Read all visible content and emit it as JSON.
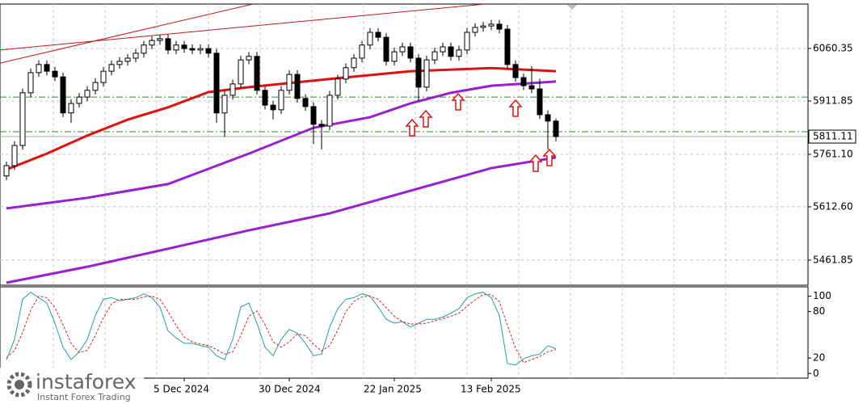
{
  "chart_data": [
    {
      "type": "candlestick",
      "categories": [
        null,
        null,
        null,
        null,
        null,
        null,
        null,
        null,
        null,
        null,
        null,
        null,
        null,
        null,
        null,
        null,
        null,
        null,
        null,
        null,
        null,
        null,
        "5 Dec 2024",
        null,
        null,
        null,
        null,
        null,
        null,
        null,
        null,
        null,
        null,
        null,
        null,
        "30 Dec 2024",
        null,
        null,
        null,
        null,
        null,
        null,
        null,
        null,
        null,
        null,
        null,
        null,
        "22 Jan 2025",
        null,
        null,
        null,
        null,
        null,
        null,
        null,
        null,
        null,
        null,
        null,
        "13 Feb 2025",
        null,
        null,
        null,
        null,
        null,
        null,
        null,
        null
      ],
      "open": [
        5700,
        5729,
        5786,
        5935,
        5992,
        6015,
        5996,
        5980,
        5878,
        5905,
        5923,
        5942,
        5964,
        5996,
        6015,
        6024,
        6033,
        6047,
        6070,
        6083,
        6088,
        6056,
        6070,
        6060,
        6056,
        6060,
        6047,
        5878,
        5928,
        5960,
        6028,
        6038,
        5942,
        5900,
        5887,
        5942,
        5987,
        5919,
        5896,
        5846,
        5841,
        5928,
        5974,
        6006,
        6033,
        6070,
        6106,
        6092,
        6024,
        6051,
        6065,
        6033,
        5951,
        6028,
        6051,
        6065,
        6038,
        6056,
        6106,
        6120,
        6124,
        6129,
        6115,
        6015,
        5978,
        5955,
        5946,
        5873,
        5855
      ],
      "high": [
        5741,
        5798,
        5947,
        6004,
        6027,
        6027,
        6008,
        5992,
        5917,
        5935,
        5954,
        5976,
        6008,
        6027,
        6036,
        6045,
        6059,
        6082,
        6095,
        6100,
        6100,
        6082,
        6082,
        6072,
        6072,
        6072,
        6059,
        5940,
        5972,
        6040,
        6050,
        6050,
        5954,
        5912,
        5954,
        5999,
        5999,
        5931,
        5908,
        5858,
        5940,
        5986,
        6018,
        6045,
        6082,
        6118,
        6118,
        6104,
        6063,
        6077,
        6077,
        6045,
        6040,
        6063,
        6077,
        6077,
        6068,
        6118,
        6132,
        6136,
        6141,
        6141,
        6127,
        6027,
        5990,
        6010,
        5975,
        5885,
        5862
      ],
      "low": [
        5688,
        5717,
        5774,
        5923,
        5980,
        5984,
        5968,
        5866,
        5850,
        5893,
        5911,
        5930,
        5952,
        5984,
        6003,
        6012,
        6021,
        6035,
        6058,
        6071,
        6044,
        6044,
        6048,
        6044,
        6044,
        6035,
        5850,
        5810,
        5916,
        5948,
        6016,
        5930,
        5888,
        5860,
        5875,
        5930,
        5907,
        5884,
        5790,
        5775,
        5829,
        5916,
        5962,
        5994,
        6021,
        6058,
        6080,
        6012,
        6012,
        6039,
        6021,
        5912,
        5939,
        6016,
        6039,
        6026,
        6026,
        6044,
        6094,
        6108,
        6112,
        6103,
        6003,
        5966,
        5943,
        5934,
        5861,
        5775,
        5798
      ],
      "close": [
        5729,
        5786,
        5935,
        5992,
        6015,
        5996,
        5980,
        5878,
        5905,
        5923,
        5942,
        5964,
        5996,
        6015,
        6024,
        6033,
        6047,
        6070,
        6083,
        6088,
        6056,
        6070,
        6060,
        6056,
        6060,
        6047,
        5878,
        5928,
        5960,
        6028,
        6038,
        5942,
        5900,
        5887,
        5942,
        5987,
        5919,
        5896,
        5846,
        5841,
        5928,
        5974,
        6006,
        6033,
        6070,
        6106,
        6092,
        6024,
        6051,
        6065,
        6033,
        5951,
        6028,
        6051,
        6065,
        6038,
        6056,
        6106,
        6120,
        6124,
        6129,
        6115,
        6015,
        5978,
        5955,
        5946,
        5873,
        5855,
        5811.11
      ],
      "up_color": "#ffffff",
      "down_color": "#000000",
      "ylim": [
        5390.8,
        6186
      ],
      "yticks": [
        5461.85,
        {
          "value": 5612.6,
          "label": "5612.60"
        },
        {
          "value": 5761.1,
          "label": "5761.10"
        },
        5911.85,
        6060.35
      ],
      "grid": true,
      "last_price": 5811.11,
      "hlines": [
        5923,
        5825
      ],
      "hline_color": "#2e8b2e",
      "moving_averages": [
        {
          "color": "#e01010",
          "x": [
            0,
            5,
            10,
            15,
            20,
            25,
            30,
            40,
            50,
            60,
            68
          ],
          "values": [
            5718,
            5763,
            5814,
            5859,
            5894,
            5937,
            5951,
            5974,
            5996,
            6005,
            5996
          ]
        },
        {
          "color": "#9a1fd0",
          "x": [
            0,
            10,
            20,
            30,
            38,
            45,
            50,
            55,
            60,
            68
          ],
          "values": [
            5608,
            5638,
            5677,
            5763,
            5836,
            5866,
            5905,
            5935,
            5955,
            5967
          ]
        },
        {
          "color": "#9a1fd0",
          "x": [
            0,
            10,
            20,
            30,
            40,
            50,
            60,
            68
          ],
          "values": [
            5398,
            5443,
            5494,
            5546,
            5594,
            5658,
            5722,
            5752
          ]
        }
      ],
      "trendlines": [
        {
          "color": "#c01818",
          "x": [
            -0.8,
            30.5
          ],
          "values": [
            6019,
            6186
          ]
        },
        {
          "color": "#c01818",
          "x": [
            -0.8,
            59.2
          ],
          "values": [
            6056,
            6186
          ]
        }
      ]
    },
    {
      "type": "line",
      "ylim": [
        -6,
        112
      ],
      "yticks": [
        0,
        20,
        80,
        100
      ],
      "series": [
        {
          "color": "#20a0a8",
          "dash": false,
          "values": [
            18,
            44,
            96,
            105,
            98,
            91,
            65,
            34,
            18,
            28,
            44,
            75,
            96,
            98,
            94,
            96,
            98,
            103,
            98,
            86,
            55,
            46,
            39,
            39,
            36,
            34,
            23,
            18,
            44,
            86,
            91,
            65,
            34,
            23,
            44,
            57,
            52,
            39,
            23,
            25,
            60,
            84,
            96,
            98,
            103,
            100,
            86,
            70,
            65,
            67,
            60,
            65,
            70,
            70,
            73,
            78,
            84,
            98,
            103,
            105,
            98,
            75,
            13,
            11,
            19,
            23,
            25,
            36,
            32
          ]
        },
        {
          "color": "#e02020",
          "dash": true,
          "values": [
            20,
            30,
            53,
            82,
            100,
            98,
            85,
            63,
            39,
            27,
            30,
            49,
            72,
            90,
            96,
            96,
            96,
            99,
            100,
            96,
            80,
            62,
            47,
            41,
            38,
            36,
            31,
            25,
            28,
            49,
            74,
            81,
            63,
            41,
            34,
            41,
            51,
            49,
            38,
            29,
            36,
            56,
            80,
            93,
            99,
            100,
            96,
            85,
            74,
            67,
            64,
            64,
            65,
            68,
            71,
            74,
            78,
            87,
            95,
            102,
            102,
            93,
            62,
            33,
            14,
            18,
            22,
            28,
            31
          ]
        }
      ]
    }
  ],
  "logo": {
    "name": "instaforex",
    "tagline": "Instant Forex Trading"
  }
}
